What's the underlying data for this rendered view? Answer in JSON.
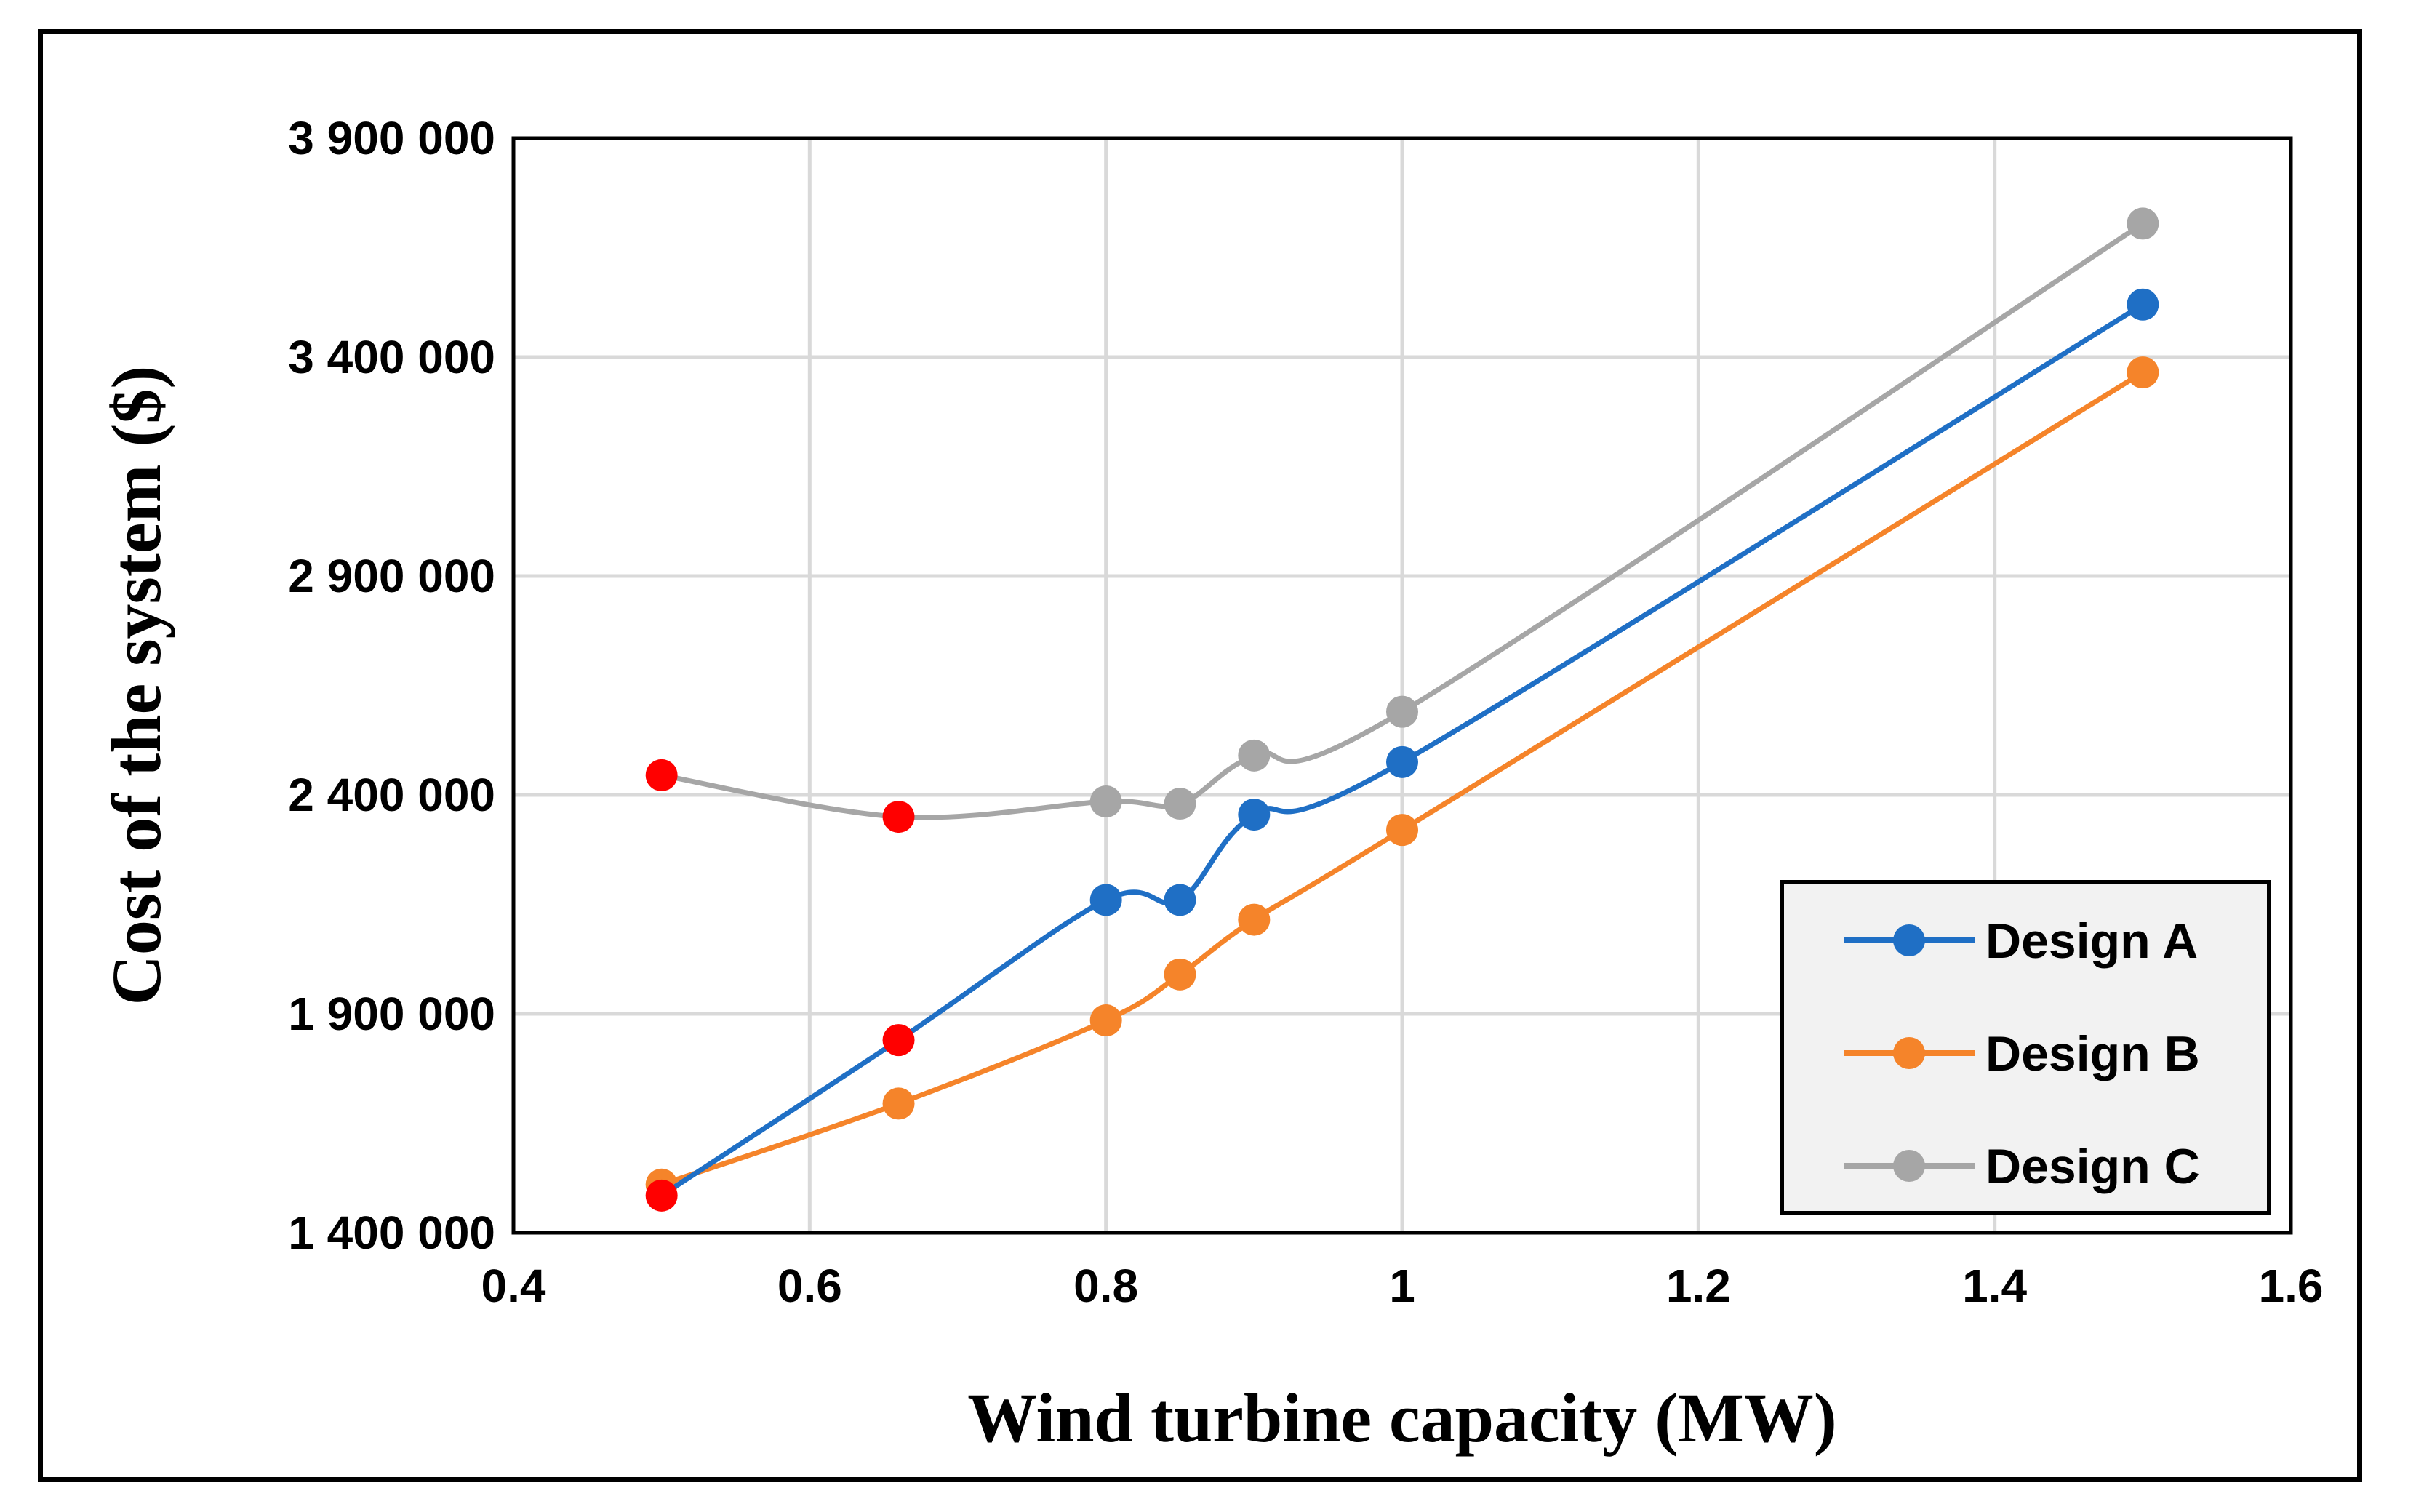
{
  "chart_data": {
    "type": "line",
    "title": "",
    "xlabel": "Wind turbine capacity (MW)",
    "ylabel": "Cost of the system ($)",
    "xlim": [
      0.4,
      1.6
    ],
    "ylim": [
      1400000,
      3900000
    ],
    "x_ticks": [
      0.4,
      0.6,
      0.8,
      1.0,
      1.2,
      1.4,
      1.6
    ],
    "x_tick_labels": [
      "0.4",
      "0.6",
      "0.8",
      "1",
      "1.2",
      "1.4",
      "1.6"
    ],
    "y_ticks": [
      1400000,
      1900000,
      2400000,
      2900000,
      3400000,
      3900000
    ],
    "y_tick_labels": [
      "1 400 000",
      "1 900 000",
      "2 400 000",
      "2 900 000",
      "3 400 000",
      "3 900 000"
    ],
    "grid": true,
    "legend_position": "bottom-right",
    "x": [
      0.5,
      0.66,
      0.8,
      0.85,
      0.9,
      1.0,
      1.5
    ],
    "series": [
      {
        "name": "Design A",
        "color": "#1f6fc5",
        "values": [
          1485000,
          1840000,
          2160000,
          2160000,
          2355000,
          2475000,
          3520000
        ],
        "highlight_color": "#ff0000",
        "highlight_indices": [
          0,
          1
        ]
      },
      {
        "name": "Design B",
        "color": "#f5842a",
        "values": [
          1510000,
          1695000,
          1885000,
          1990000,
          2115000,
          2320000,
          3365000
        ],
        "highlight_indices": []
      },
      {
        "name": "Design C",
        "color": "#a6a6a6",
        "values": [
          2445000,
          2350000,
          2385000,
          2380000,
          2490000,
          2590000,
          3705000
        ],
        "highlight_color": "#ff0000",
        "highlight_indices": [
          0,
          1
        ]
      }
    ]
  }
}
